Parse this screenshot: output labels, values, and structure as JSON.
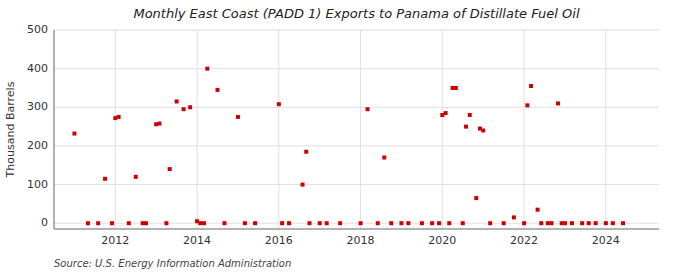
{
  "chart_data": {
    "type": "scatter",
    "title": "Monthly East Coast (PADD 1) Exports to Panama of Distillate Fuel Oil",
    "y_label": "Thousand Barrels",
    "annotations": [
      "Source: U.S. Energy Information Administration"
    ],
    "color": "#cc0000",
    "marker": "square",
    "grid": true,
    "xlim": [
      2010.5,
      2025.3
    ],
    "xticks": [
      2012,
      2014,
      2016,
      2018,
      2020,
      2022,
      2024
    ],
    "ylim": [
      -15,
      500
    ],
    "yticks": [
      0,
      100,
      200,
      300,
      400,
      500
    ],
    "x": [
      2011.0,
      2011.33,
      2011.58,
      2011.75,
      2011.92,
      2012.0,
      2012.08,
      2012.33,
      2012.5,
      2012.67,
      2012.75,
      2013.0,
      2013.08,
      2013.25,
      2013.33,
      2013.5,
      2013.67,
      2013.83,
      2014.0,
      2014.08,
      2014.17,
      2014.25,
      2014.5,
      2014.67,
      2015.0,
      2015.17,
      2015.42,
      2016.0,
      2016.08,
      2016.25,
      2016.58,
      2016.67,
      2016.75,
      2017.0,
      2017.17,
      2017.5,
      2018.0,
      2018.17,
      2018.42,
      2018.58,
      2018.75,
      2019.0,
      2019.17,
      2019.5,
      2019.75,
      2019.92,
      2020.0,
      2020.08,
      2020.17,
      2020.25,
      2020.33,
      2020.5,
      2020.58,
      2020.67,
      2020.83,
      2020.92,
      2021.0,
      2021.17,
      2021.5,
      2021.75,
      2022.0,
      2022.08,
      2022.17,
      2022.33,
      2022.42,
      2022.58,
      2022.67,
      2022.83,
      2022.92,
      2023.0,
      2023.17,
      2023.42,
      2023.58,
      2023.75,
      2024.0,
      2024.17,
      2024.42
    ],
    "values": [
      232,
      0,
      0,
      115,
      0,
      272,
      275,
      0,
      120,
      0,
      0,
      256,
      258,
      0,
      140,
      315,
      295,
      300,
      5,
      0,
      0,
      400,
      345,
      0,
      275,
      0,
      0,
      308,
      0,
      0,
      100,
      185,
      0,
      0,
      0,
      0,
      0,
      295,
      0,
      170,
      0,
      0,
      0,
      0,
      0,
      0,
      280,
      285,
      0,
      350,
      350,
      0,
      250,
      280,
      65,
      245,
      240,
      0,
      0,
      15,
      0,
      305,
      355,
      35,
      0,
      0,
      0,
      310,
      0,
      0,
      0,
      0,
      0,
      0,
      0,
      0,
      0
    ]
  }
}
